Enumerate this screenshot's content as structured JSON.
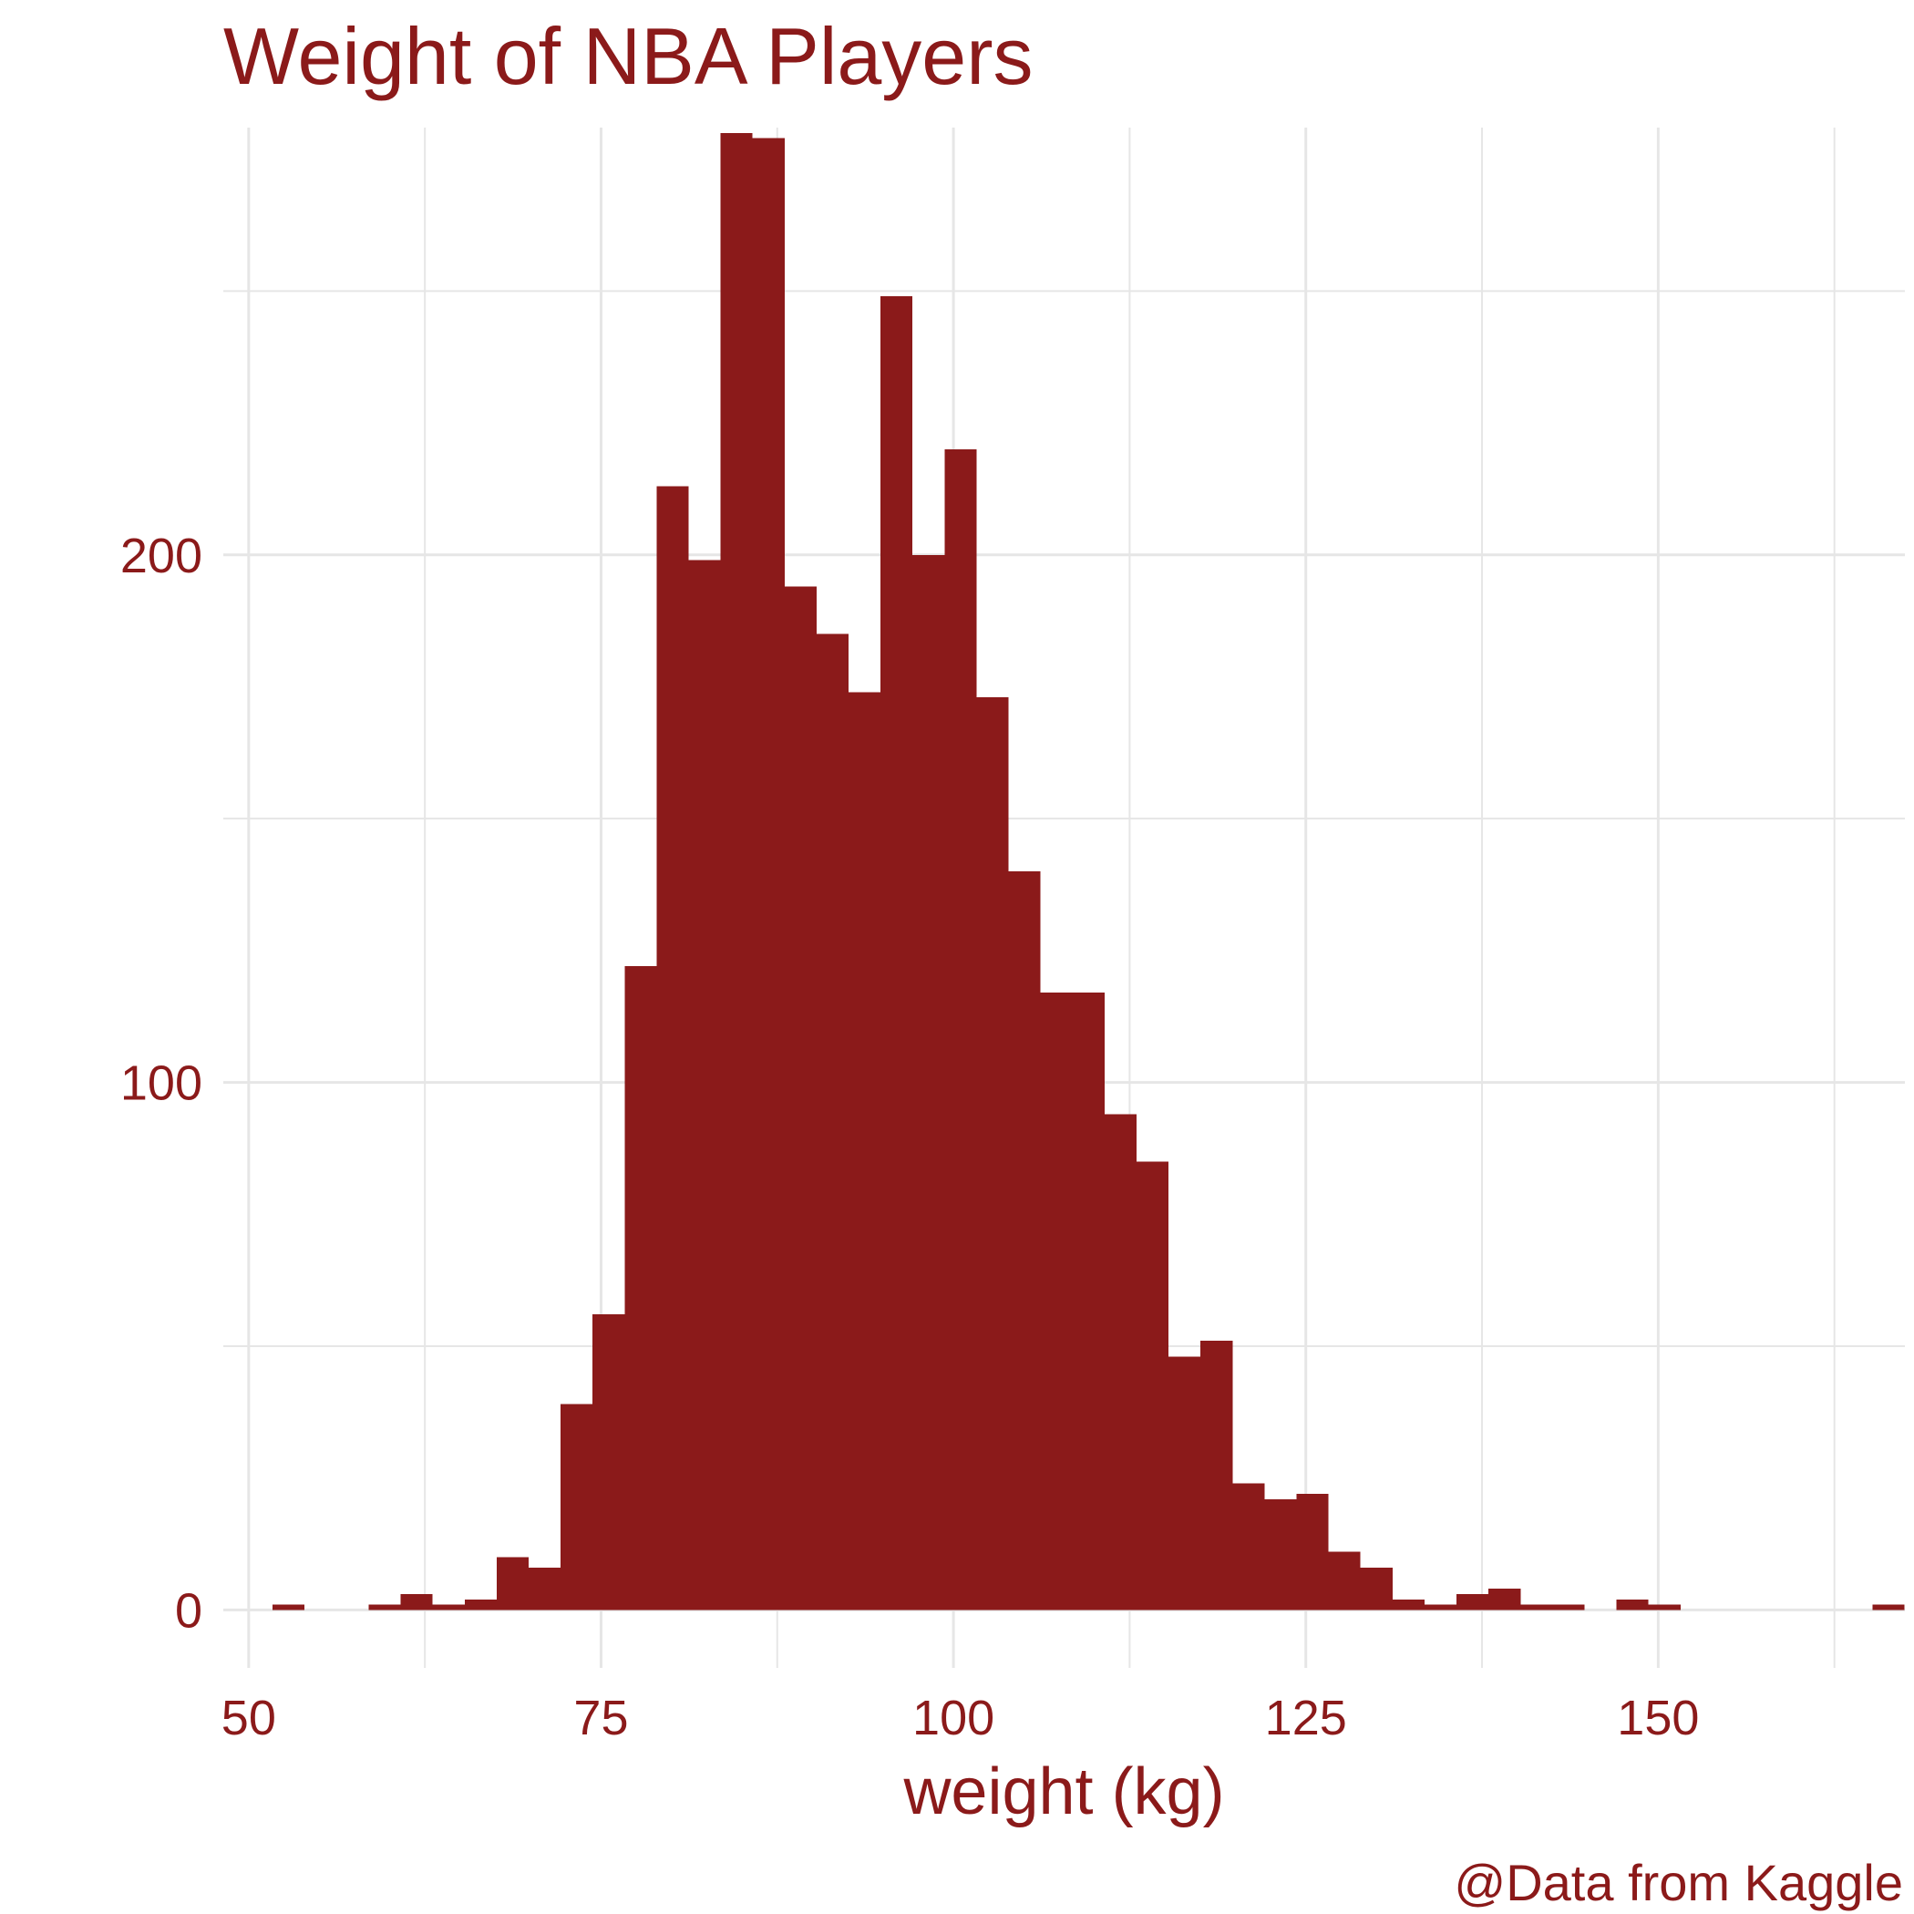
{
  "colors": {
    "accent": "#8B1A1A",
    "grid": "#E6E6E6",
    "background": "#FFFFFF"
  },
  "chart_data": {
    "type": "bar",
    "title": "Weight of NBA Players",
    "xlabel": "weight (kg)",
    "ylabel": "",
    "caption": "@Data from Kaggle",
    "grid": true,
    "legend": "none",
    "xlim": [
      48.2,
      167.5
    ],
    "ylim": [
      -11,
      281
    ],
    "x_ticks": [
      50,
      75,
      100,
      125,
      150
    ],
    "y_ticks": [
      0,
      100,
      200
    ],
    "bin_width": 2.27,
    "bin_start": 51.7,
    "values": [
      1,
      0,
      0,
      1,
      3,
      1,
      2,
      10,
      8,
      39,
      56,
      122,
      213,
      199,
      280,
      279,
      194,
      185,
      174,
      249,
      200,
      220,
      173,
      140,
      117,
      117,
      94,
      85,
      48,
      51,
      24,
      21,
      22,
      11,
      8,
      2,
      1,
      3,
      4,
      1,
      1,
      0,
      2,
      1,
      0,
      0,
      0,
      0,
      0,
      0,
      1
    ]
  }
}
